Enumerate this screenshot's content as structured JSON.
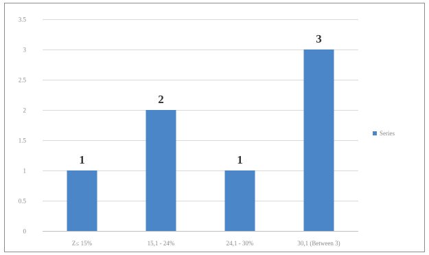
{
  "chart_data": {
    "type": "bar",
    "categories": [
      "Z≤ 15%",
      "15,1 - 24%",
      "24,1 - 30%",
      "30,1 (Between 3)"
    ],
    "series": [
      {
        "name": "Series",
        "values": [
          1,
          2,
          1,
          3
        ]
      }
    ],
    "ylim": [
      0,
      3.5
    ],
    "yticks": [
      "0",
      "0.5",
      "1",
      "1.5",
      "2",
      "2.5",
      "3",
      "3.5"
    ],
    "title": "",
    "xlabel": "",
    "ylabel": "",
    "grid": true,
    "legend_position": "right",
    "colors": {
      "bar": "#4a86c8",
      "grid": "#d9d9d9",
      "frame": "#8c8c8c",
      "axis": "#bfbfbf"
    }
  }
}
